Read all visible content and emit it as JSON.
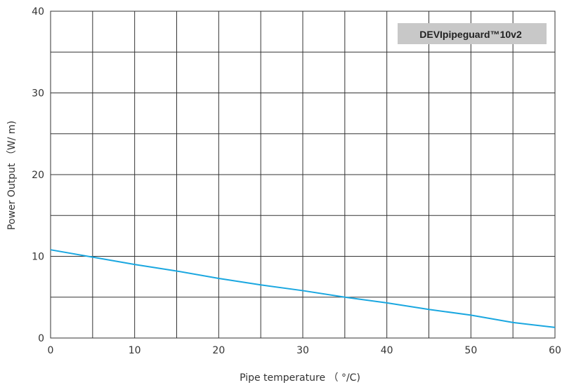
{
  "chart_data": {
    "type": "line",
    "xlabel": "Pipe temperature （ °/C)",
    "ylabel": "Power Output （W/ m)",
    "xlim": [
      0,
      60
    ],
    "ylim": [
      0,
      40
    ],
    "x_ticks": [
      0,
      10,
      20,
      30,
      40,
      50,
      60
    ],
    "y_ticks": [
      0,
      10,
      20,
      30,
      40
    ],
    "x_grid_step": 5,
    "y_grid_step": 5,
    "grid": true,
    "legend_position": "top-right",
    "series": [
      {
        "name": "DEVIpipeguard™10v2",
        "color": "#1aa7e0",
        "x": [
          0,
          5,
          10,
          15,
          20,
          25,
          30,
          35,
          40,
          45,
          50,
          55,
          60
        ],
        "y": [
          10.8,
          9.9,
          9.0,
          8.2,
          7.3,
          6.5,
          5.8,
          5.0,
          4.3,
          3.5,
          2.8,
          1.9,
          1.3
        ]
      }
    ]
  }
}
